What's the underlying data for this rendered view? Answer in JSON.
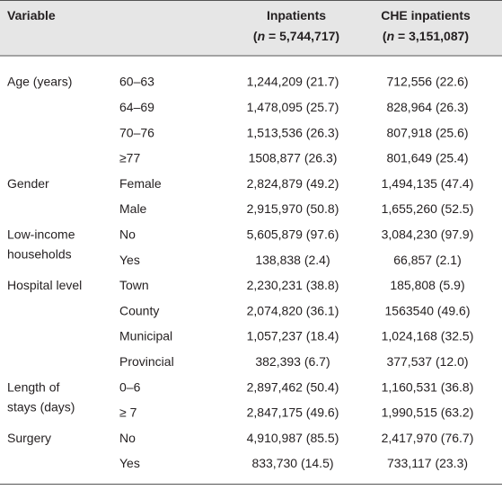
{
  "table": {
    "header": [
      {
        "lines": [
          [
            "Variable"
          ]
        ]
      },
      {
        "lines": [
          [
            "Inpatients"
          ],
          [
            "(",
            "n",
            " = 5,744,717)"
          ]
        ]
      },
      {
        "lines": [
          [
            "CHE inpatients"
          ],
          [
            "(",
            "n",
            " = 3,151,087)"
          ]
        ]
      }
    ],
    "groups": [
      {
        "label": [
          "Age (years)"
        ],
        "rows": [
          [
            "60–63",
            "1,244,209 (21.7)",
            "712,556 (22.6)"
          ],
          [
            "64–69",
            "1,478,095 (25.7)",
            "828,964 (26.3)"
          ],
          [
            "70–76",
            "1,513,536 (26.3)",
            "807,918 (25.6)"
          ],
          [
            "≥77",
            "1508,877 (26.3)",
            "801,649 (25.4)"
          ]
        ]
      },
      {
        "label": [
          "Gender"
        ],
        "rows": [
          [
            "Female",
            "2,824,879 (49.2)",
            "1,494,135 (47.4)"
          ],
          [
            "Male",
            "2,915,970 (50.8)",
            "1,655,260 (52.5)"
          ]
        ]
      },
      {
        "label": [
          "Low-income",
          "households"
        ],
        "rows": [
          [
            "No",
            "5,605,879 (97.6)",
            "3,084,230 (97.9)"
          ],
          [
            "Yes",
            "138,838 (2.4)",
            "66,857 (2.1)"
          ]
        ]
      },
      {
        "label": [
          "Hospital level"
        ],
        "rows": [
          [
            "Town",
            "2,230,231 (38.8)",
            "185,808 (5.9)"
          ],
          [
            "County",
            "2,074,820 (36.1)",
            "1563540 (49.6)"
          ],
          [
            "Municipal",
            "1,057,237 (18.4)",
            "1,024,168 (32.5)"
          ],
          [
            "Provincial",
            "382,393 (6.7)",
            "377,537 (12.0)"
          ]
        ]
      },
      {
        "label": [
          "Length of",
          "stays (days)"
        ],
        "rows": [
          [
            "0–6",
            "2,897,462 (50.4)",
            "1,160,531 (36.8)"
          ],
          [
            "≥ 7",
            "2,847,175 (49.6)",
            "1,990,515 (63.2)"
          ]
        ]
      },
      {
        "label": [
          "Surgery"
        ],
        "rows": [
          [
            "No",
            "4,910,987 (85.5)",
            "2,417,970 (76.7)"
          ],
          [
            "Yes",
            "833,730 (14.5)",
            "733,117 (23.3)"
          ]
        ]
      }
    ]
  }
}
